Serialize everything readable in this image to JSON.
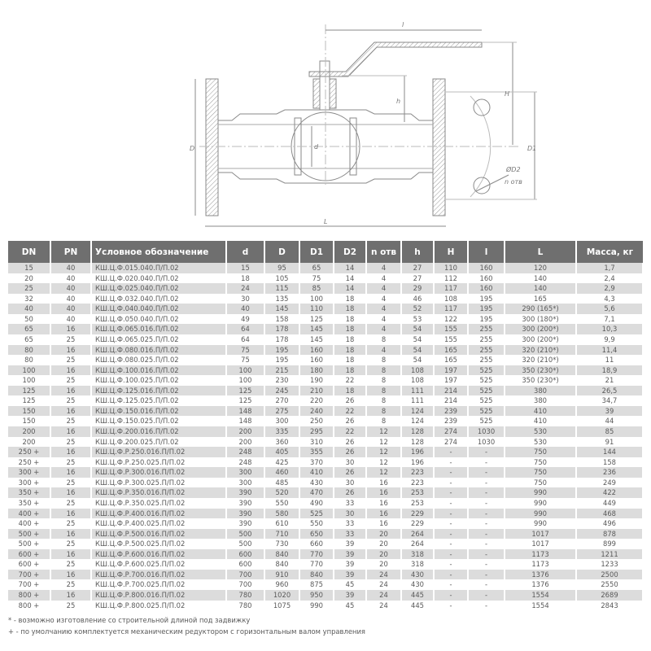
{
  "drawing": {
    "labels": {
      "l_top": "l",
      "h": "h",
      "H": "H",
      "D": "D",
      "d": "d",
      "D1": "D1",
      "D2": "ØD2",
      "n_holes": "n отв",
      "L": "L"
    },
    "line_color": "#8a8a8a"
  },
  "table": {
    "headers": [
      "DN",
      "PN",
      "Условное обозначение",
      "d",
      "D",
      "D1",
      "D2",
      "n отв",
      "h",
      "H",
      "l",
      "L",
      "Масса, кг"
    ],
    "rows": [
      [
        "15",
        "40",
        "КШ.Ц.Ф.015.040.П/П.02",
        "15",
        "95",
        "65",
        "14",
        "4",
        "27",
        "110",
        "160",
        "120",
        "1,7"
      ],
      [
        "20",
        "40",
        "КШ.Ц.Ф.020.040.П/П.02",
        "18",
        "105",
        "75",
        "14",
        "4",
        "27",
        "112",
        "160",
        "140",
        "2,4"
      ],
      [
        "25",
        "40",
        "КШ.Ц.Ф.025.040.П/П.02",
        "24",
        "115",
        "85",
        "14",
        "4",
        "29",
        "117",
        "160",
        "140",
        "2,9"
      ],
      [
        "32",
        "40",
        "КШ.Ц.Ф.032.040.П/П.02",
        "30",
        "135",
        "100",
        "18",
        "4",
        "46",
        "108",
        "195",
        "165",
        "4,3"
      ],
      [
        "40",
        "40",
        "КШ.Ц.Ф.040.040.П/П.02",
        "40",
        "145",
        "110",
        "18",
        "4",
        "52",
        "117",
        "195",
        "290 (165*)",
        "5,6"
      ],
      [
        "50",
        "40",
        "КШ.Ц.Ф.050.040.П/П.02",
        "49",
        "158",
        "125",
        "18",
        "4",
        "53",
        "122",
        "195",
        "300 (180*)",
        "7,1"
      ],
      [
        "65",
        "16",
        "КШ.Ц.Ф.065.016.П/П.02",
        "64",
        "178",
        "145",
        "18",
        "4",
        "54",
        "155",
        "255",
        "300 (200*)",
        "10,3"
      ],
      [
        "65",
        "25",
        "КШ.Ц.Ф.065.025.П/П.02",
        "64",
        "178",
        "145",
        "18",
        "8",
        "54",
        "155",
        "255",
        "300 (200*)",
        "9,9"
      ],
      [
        "80",
        "16",
        "КШ.Ц.Ф.080.016.П/П.02",
        "75",
        "195",
        "160",
        "18",
        "4",
        "54",
        "165",
        "255",
        "320 (210*)",
        "11,4"
      ],
      [
        "80",
        "25",
        "КШ.Ц.Ф.080.025.П/П.02",
        "75",
        "195",
        "160",
        "18",
        "8",
        "54",
        "165",
        "255",
        "320 (210*)",
        "11"
      ],
      [
        "100",
        "16",
        "КШ.Ц.Ф.100.016.П/П.02",
        "100",
        "215",
        "180",
        "18",
        "8",
        "108",
        "197",
        "525",
        "350 (230*)",
        "18,9"
      ],
      [
        "100",
        "25",
        "КШ.Ц.Ф.100.025.П/П.02",
        "100",
        "230",
        "190",
        "22",
        "8",
        "108",
        "197",
        "525",
        "350 (230*)",
        "21"
      ],
      [
        "125",
        "16",
        "КШ.Ц.Ф.125.016.П/П.02",
        "125",
        "245",
        "210",
        "18",
        "8",
        "111",
        "214",
        "525",
        "380",
        "26,5"
      ],
      [
        "125",
        "25",
        "КШ.Ц.Ф.125.025.П/П.02",
        "125",
        "270",
        "220",
        "26",
        "8",
        "111",
        "214",
        "525",
        "380",
        "34,7"
      ],
      [
        "150",
        "16",
        "КШ.Ц.Ф.150.016.П/П.02",
        "148",
        "275",
        "240",
        "22",
        "8",
        "124",
        "239",
        "525",
        "410",
        "39"
      ],
      [
        "150",
        "25",
        "КШ.Ц.Ф.150.025.П/П.02",
        "148",
        "300",
        "250",
        "26",
        "8",
        "124",
        "239",
        "525",
        "410",
        "44"
      ],
      [
        "200",
        "16",
        "КШ.Ц.Ф.200.016.П/П.02",
        "200",
        "335",
        "295",
        "22",
        "12",
        "128",
        "274",
        "1030",
        "530",
        "85"
      ],
      [
        "200",
        "25",
        "КШ.Ц.Ф.200.025.П/П.02",
        "200",
        "360",
        "310",
        "26",
        "12",
        "128",
        "274",
        "1030",
        "530",
        "91"
      ],
      [
        "250 +",
        "16",
        "КШ.Ц.Ф.Р.250.016.П/П.02",
        "248",
        "405",
        "355",
        "26",
        "12",
        "196",
        "-",
        "-",
        "750",
        "144"
      ],
      [
        "250 +",
        "25",
        "КШ.Ц.Ф.Р.250.025.П/П.02",
        "248",
        "425",
        "370",
        "30",
        "12",
        "196",
        "-",
        "-",
        "750",
        "158"
      ],
      [
        "300 +",
        "16",
        "КШ.Ц.Ф.Р.300.016.П/П.02",
        "300",
        "460",
        "410",
        "26",
        "12",
        "223",
        "-",
        "-",
        "750",
        "236"
      ],
      [
        "300 +",
        "25",
        "КШ.Ц.Ф.Р.300.025.П/П.02",
        "300",
        "485",
        "430",
        "30",
        "16",
        "223",
        "-",
        "-",
        "750",
        "249"
      ],
      [
        "350 +",
        "16",
        "КШ.Ц.Ф.Р.350.016.П/П.02",
        "390",
        "520",
        "470",
        "26",
        "16",
        "253",
        "-",
        "-",
        "990",
        "422"
      ],
      [
        "350 +",
        "25",
        "КШ.Ц.Ф.Р.350.025.П/П.02",
        "390",
        "550",
        "490",
        "33",
        "16",
        "253",
        "-",
        "-",
        "990",
        "449"
      ],
      [
        "400 +",
        "16",
        "КШ.Ц.Ф.Р.400.016.П/П.02",
        "390",
        "580",
        "525",
        "30",
        "16",
        "229",
        "-",
        "-",
        "990",
        "468"
      ],
      [
        "400 +",
        "25",
        "КШ.Ц.Ф.Р.400.025.П/П.02",
        "390",
        "610",
        "550",
        "33",
        "16",
        "229",
        "-",
        "-",
        "990",
        "496"
      ],
      [
        "500 +",
        "16",
        "КШ.Ц.Ф.Р.500.016.П/П.02",
        "500",
        "710",
        "650",
        "33",
        "20",
        "264",
        "-",
        "-",
        "1017",
        "878"
      ],
      [
        "500 +",
        "25",
        "КШ.Ц.Ф.Р.500.025.П/П.02",
        "500",
        "730",
        "660",
        "39",
        "20",
        "264",
        "-",
        "-",
        "1017",
        "899"
      ],
      [
        "600 +",
        "16",
        "КШ.Ц.Ф.Р.600.016.П/П.02",
        "600",
        "840",
        "770",
        "39",
        "20",
        "318",
        "-",
        "-",
        "1173",
        "1211"
      ],
      [
        "600 +",
        "25",
        "КШ.Ц.Ф.Р.600.025.П/П.02",
        "600",
        "840",
        "770",
        "39",
        "20",
        "318",
        "-",
        "-",
        "1173",
        "1233"
      ],
      [
        "700 +",
        "16",
        "КШ.Ц.Ф.Р.700.016.П/П.02",
        "700",
        "910",
        "840",
        "39",
        "24",
        "430",
        "-",
        "-",
        "1376",
        "2500"
      ],
      [
        "700 +",
        "25",
        "КШ.Ц.Ф.Р.700.025.П/П.02",
        "700",
        "960",
        "875",
        "45",
        "24",
        "430",
        "-",
        "-",
        "1376",
        "2550"
      ],
      [
        "800 +",
        "16",
        "КШ.Ц.Ф.Р.800.016.П/П.02",
        "780",
        "1020",
        "950",
        "39",
        "24",
        "445",
        "-",
        "-",
        "1554",
        "2689"
      ],
      [
        "800 +",
        "25",
        "КШ.Ц.Ф.Р.800.025.П/П.02",
        "780",
        "1075",
        "990",
        "45",
        "24",
        "445",
        "-",
        "-",
        "1554",
        "2843"
      ]
    ],
    "header_bg": "#6f6f6f",
    "stripe_bg": "#dcdcdc"
  },
  "footnotes": [
    "* - возможно изготовление со строительной длиной под задвижку",
    "+ - по умолчанию комплектуется механическим редуктором с горизонтальным валом управления"
  ]
}
